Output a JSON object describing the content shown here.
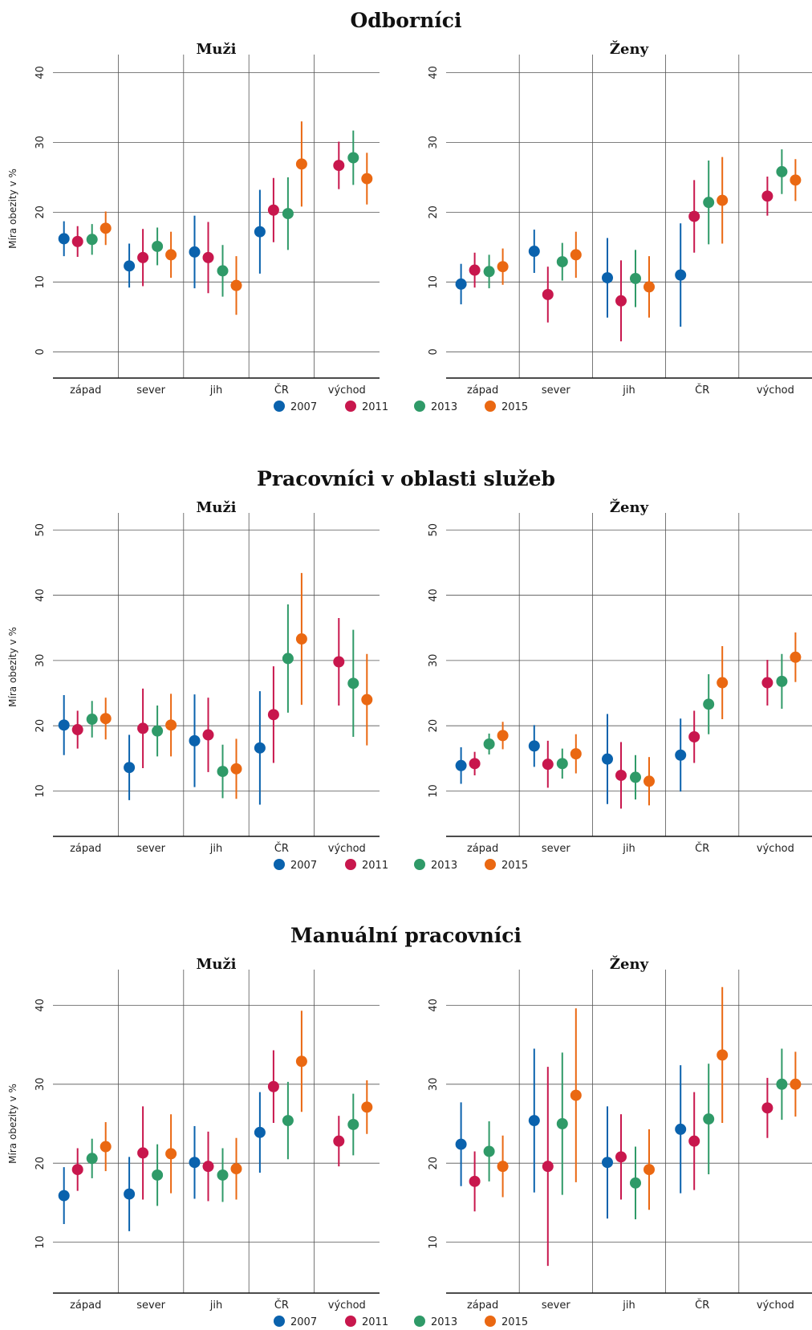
{
  "years": [
    "2007",
    "2011",
    "2013",
    "2015"
  ],
  "colors": [
    "#0a62ad",
    "#c8174d",
    "#2f9a68",
    "#ea6812"
  ],
  "regions": [
    "západ",
    "sever",
    "jih",
    "ČR",
    "východ"
  ],
  "chart_data": [
    {
      "type": "scatter",
      "title": "Odborníci",
      "ylabel": "Míra obezity v %",
      "yticks": [
        0,
        10,
        20,
        30,
        40
      ],
      "ylim": [
        -1,
        42
      ],
      "categories": [
        "západ",
        "sever",
        "jih",
        "ČR",
        "východ"
      ],
      "panels": [
        {
          "title": "Muži",
          "series": [
            {
              "name": "2007",
              "values": [
                [
                  16.2,
                  13.7,
                  18.7
                ],
                [
                  12.3,
                  9.2,
                  15.5
                ],
                [
                  14.3,
                  9.1,
                  19.5
                ],
                [
                  17.2,
                  11.2,
                  23.2
                ],
                null
              ]
            },
            {
              "name": "2011",
              "values": [
                [
                  15.8,
                  13.6,
                  18.0
                ],
                [
                  13.5,
                  9.4,
                  17.6
                ],
                [
                  13.5,
                  8.4,
                  18.6
                ],
                [
                  20.3,
                  15.7,
                  24.9
                ],
                [
                  26.7,
                  23.3,
                  30.1
                ]
              ]
            },
            {
              "name": "2013",
              "values": [
                [
                  16.1,
                  13.9,
                  18.3
                ],
                [
                  15.1,
                  12.4,
                  17.8
                ],
                [
                  11.6,
                  7.9,
                  15.3
                ],
                [
                  19.8,
                  14.6,
                  25.0
                ],
                [
                  27.8,
                  23.9,
                  31.7
                ]
              ]
            },
            {
              "name": "2015",
              "values": [
                [
                  17.7,
                  15.3,
                  20.1
                ],
                [
                  13.9,
                  10.6,
                  17.2
                ],
                [
                  9.5,
                  5.3,
                  13.7
                ],
                [
                  26.9,
                  20.8,
                  33.0
                ],
                [
                  24.8,
                  21.1,
                  28.5
                ]
              ]
            }
          ]
        },
        {
          "title": "Ženy",
          "series": [
            {
              "name": "2007",
              "values": [
                [
                  9.7,
                  6.8,
                  12.6
                ],
                [
                  14.4,
                  11.3,
                  17.5
                ],
                [
                  10.6,
                  4.9,
                  16.3
                ],
                [
                  11.0,
                  3.6,
                  18.4
                ],
                null
              ]
            },
            {
              "name": "2011",
              "values": [
                [
                  11.7,
                  9.2,
                  14.2
                ],
                [
                  8.2,
                  4.2,
                  12.2
                ],
                [
                  7.3,
                  1.5,
                  13.1
                ],
                [
                  19.4,
                  14.2,
                  24.6
                ],
                [
                  22.3,
                  19.5,
                  25.1
                ]
              ]
            },
            {
              "name": "2013",
              "values": [
                [
                  11.5,
                  9.1,
                  13.9
                ],
                [
                  12.9,
                  10.2,
                  15.6
                ],
                [
                  10.5,
                  6.4,
                  14.6
                ],
                [
                  21.4,
                  15.4,
                  27.4
                ],
                [
                  25.8,
                  22.6,
                  29.0
                ]
              ]
            },
            {
              "name": "2015",
              "values": [
                [
                  12.2,
                  9.6,
                  14.8
                ],
                [
                  13.9,
                  10.6,
                  17.2
                ],
                [
                  9.3,
                  4.9,
                  13.7
                ],
                [
                  21.7,
                  15.5,
                  27.9
                ],
                [
                  24.6,
                  21.6,
                  27.6
                ]
              ]
            }
          ]
        }
      ]
    },
    {
      "type": "scatter",
      "title": "Pracovníci v oblasti služeb",
      "ylabel": "Míra obezity v %",
      "yticks": [
        10,
        20,
        30,
        40,
        50
      ],
      "ylim": [
        6,
        52
      ],
      "categories": [
        "západ",
        "sever",
        "jih",
        "ČR",
        "východ"
      ],
      "panels": [
        {
          "title": "Muži",
          "series": [
            {
              "name": "2007",
              "values": [
                [
                  20.1,
                  15.5,
                  24.7
                ],
                [
                  13.6,
                  8.6,
                  18.6
                ],
                [
                  17.7,
                  10.6,
                  24.8
                ],
                [
                  16.6,
                  7.9,
                  25.3
                ],
                null
              ]
            },
            {
              "name": "2011",
              "values": [
                [
                  19.4,
                  16.5,
                  22.3
                ],
                [
                  19.6,
                  13.5,
                  25.7
                ],
                [
                  18.6,
                  12.9,
                  24.3
                ],
                [
                  21.7,
                  14.3,
                  29.1
                ],
                [
                  29.8,
                  23.1,
                  36.5
                ]
              ]
            },
            {
              "name": "2013",
              "values": [
                [
                  21.0,
                  18.2,
                  23.8
                ],
                [
                  19.2,
                  15.3,
                  23.1
                ],
                [
                  13.0,
                  8.9,
                  17.1
                ],
                [
                  30.3,
                  22.0,
                  38.6
                ],
                [
                  26.5,
                  18.3,
                  34.7
                ]
              ]
            },
            {
              "name": "2015",
              "values": [
                [
                  21.1,
                  17.9,
                  24.3
                ],
                [
                  20.1,
                  15.3,
                  24.9
                ],
                [
                  13.4,
                  8.8,
                  18.0
                ],
                [
                  33.3,
                  23.2,
                  43.4
                ],
                [
                  24.0,
                  17.0,
                  31.0
                ]
              ]
            }
          ]
        },
        {
          "title": "Ženy",
          "series": [
            {
              "name": "2007",
              "values": [
                [
                  13.9,
                  11.1,
                  16.7
                ],
                [
                  16.9,
                  13.7,
                  20.1
                ],
                [
                  14.9,
                  8.0,
                  21.8
                ],
                [
                  15.5,
                  9.9,
                  21.1
                ],
                null
              ]
            },
            {
              "name": "2011",
              "values": [
                [
                  14.2,
                  12.4,
                  16.0
                ],
                [
                  14.1,
                  10.5,
                  17.7
                ],
                [
                  12.4,
                  7.3,
                  17.5
                ],
                [
                  18.3,
                  14.3,
                  22.3
                ],
                [
                  26.6,
                  23.1,
                  30.1
                ]
              ]
            },
            {
              "name": "2013",
              "values": [
                [
                  17.2,
                  15.6,
                  18.8
                ],
                [
                  14.2,
                  11.9,
                  16.5
                ],
                [
                  12.1,
                  8.7,
                  15.5
                ],
                [
                  23.3,
                  18.7,
                  27.9
                ],
                [
                  26.8,
                  22.6,
                  31.0
                ]
              ]
            },
            {
              "name": "2015",
              "values": [
                [
                  18.5,
                  16.4,
                  20.6
                ],
                [
                  15.7,
                  12.7,
                  18.7
                ],
                [
                  11.5,
                  7.8,
                  15.2
                ],
                [
                  26.6,
                  21.0,
                  32.2
                ],
                [
                  30.5,
                  26.7,
                  34.3
                ]
              ]
            }
          ]
        }
      ]
    },
    {
      "type": "scatter",
      "title": "Manuální pracovníci",
      "ylabel": "Míra obezity v %",
      "yticks": [
        10,
        20,
        30,
        40
      ],
      "ylim": [
        6,
        44
      ],
      "categories": [
        "západ",
        "sever",
        "jih",
        "ČR",
        "východ"
      ],
      "panels": [
        {
          "title": "Muži",
          "series": [
            {
              "name": "2007",
              "values": [
                [
                  15.9,
                  12.3,
                  19.5
                ],
                [
                  16.1,
                  11.4,
                  20.8
                ],
                [
                  20.1,
                  15.5,
                  24.7
                ],
                [
                  23.9,
                  18.8,
                  29.0
                ],
                null
              ]
            },
            {
              "name": "2011",
              "values": [
                [
                  19.2,
                  16.5,
                  21.9
                ],
                [
                  21.3,
                  15.4,
                  27.2
                ],
                [
                  19.6,
                  15.2,
                  24.0
                ],
                [
                  29.7,
                  25.1,
                  34.3
                ],
                [
                  22.8,
                  19.6,
                  26.0
                ]
              ]
            },
            {
              "name": "2013",
              "values": [
                [
                  20.6,
                  18.1,
                  23.1
                ],
                [
                  18.5,
                  14.6,
                  22.4
                ],
                [
                  18.5,
                  15.1,
                  21.9
                ],
                [
                  25.4,
                  20.5,
                  30.3
                ],
                [
                  24.9,
                  21.0,
                  28.8
                ]
              ]
            },
            {
              "name": "2015",
              "values": [
                [
                  22.1,
                  19.0,
                  25.2
                ],
                [
                  21.2,
                  16.2,
                  26.2
                ],
                [
                  19.3,
                  15.4,
                  23.2
                ],
                [
                  32.9,
                  26.5,
                  39.3
                ],
                [
                  27.1,
                  23.7,
                  30.5
                ]
              ]
            }
          ]
        },
        {
          "title": "Ženy",
          "series": [
            {
              "name": "2007",
              "values": [
                [
                  22.4,
                  17.1,
                  27.7
                ],
                [
                  25.4,
                  16.3,
                  34.5
                ],
                [
                  20.1,
                  13.0,
                  27.2
                ],
                [
                  24.3,
                  16.2,
                  32.4
                ],
                null
              ]
            },
            {
              "name": "2011",
              "values": [
                [
                  17.7,
                  13.9,
                  21.5
                ],
                [
                  19.6,
                  7.0,
                  32.2
                ],
                [
                  20.8,
                  15.4,
                  26.2
                ],
                [
                  22.8,
                  16.6,
                  29.0
                ],
                [
                  27.0,
                  23.2,
                  30.8
                ]
              ]
            },
            {
              "name": "2013",
              "values": [
                [
                  21.5,
                  17.7,
                  25.3
                ],
                [
                  25.0,
                  16.0,
                  34.0
                ],
                [
                  17.5,
                  12.9,
                  22.1
                ],
                [
                  25.6,
                  18.6,
                  32.6
                ],
                [
                  30.0,
                  25.5,
                  34.5
                ]
              ]
            },
            {
              "name": "2015",
              "values": [
                [
                  19.6,
                  15.7,
                  23.5
                ],
                [
                  28.6,
                  17.6,
                  39.6
                ],
                [
                  19.2,
                  14.1,
                  24.3
                ],
                [
                  33.7,
                  25.1,
                  42.3
                ],
                [
                  30.0,
                  25.9,
                  34.1
                ]
              ]
            }
          ]
        }
      ]
    }
  ]
}
